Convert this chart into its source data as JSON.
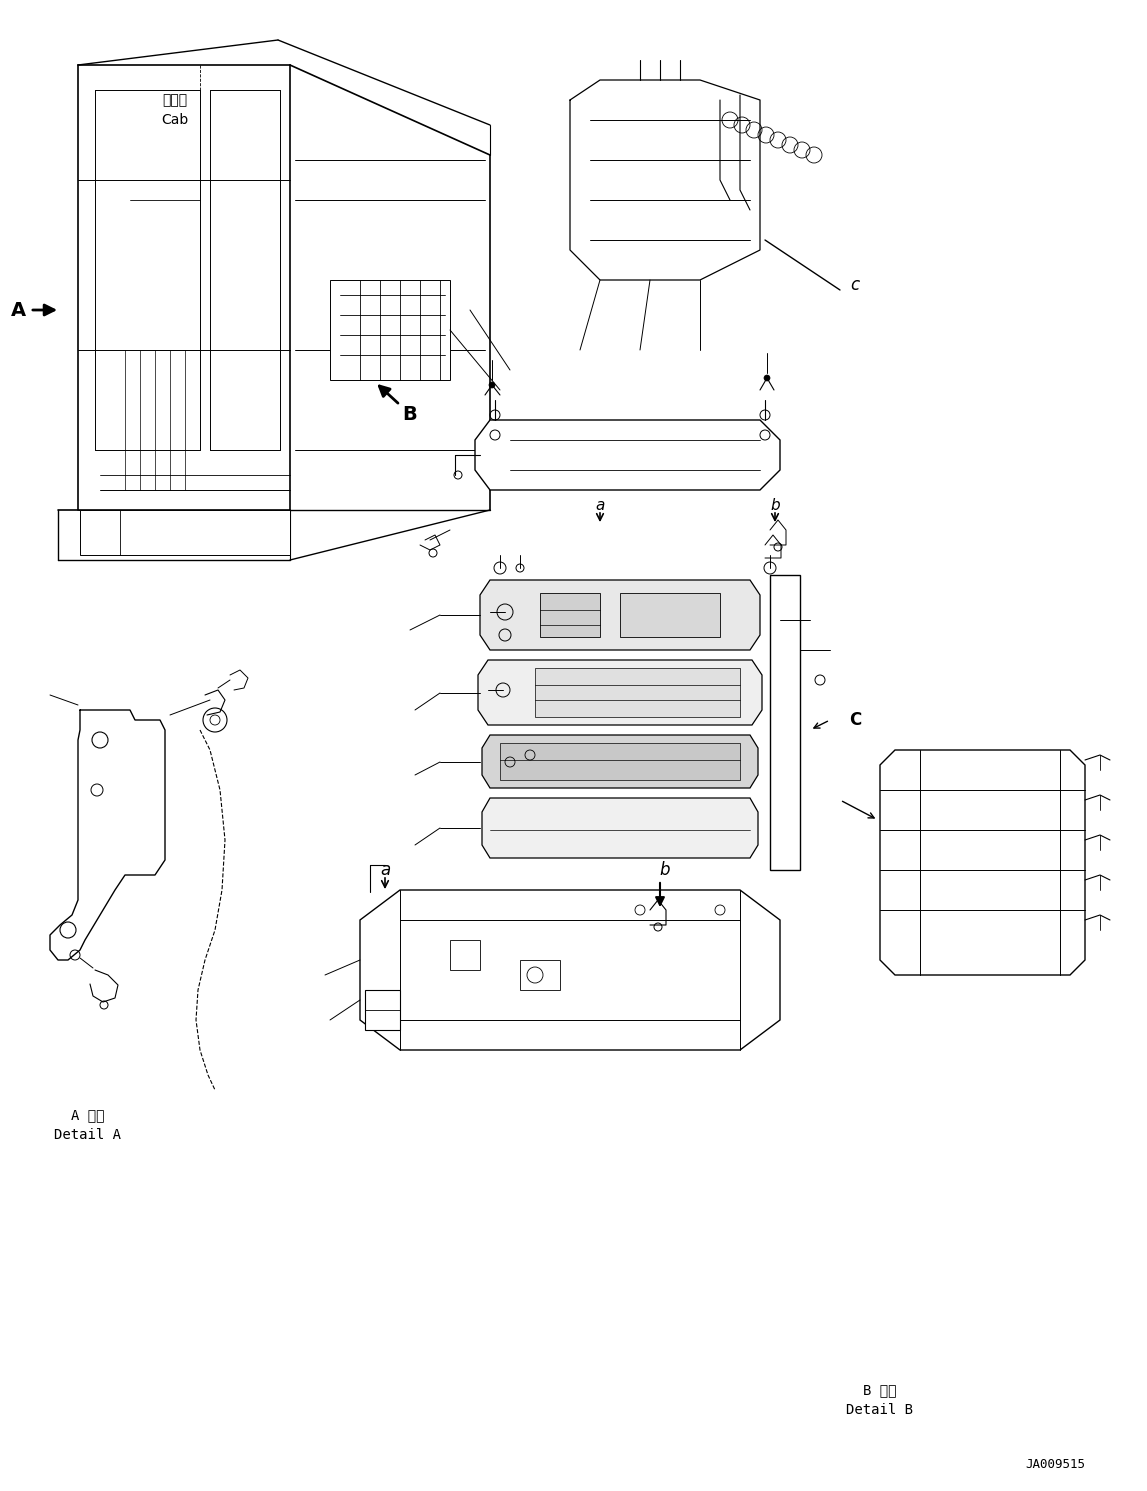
{
  "figure_width": 11.47,
  "figure_height": 14.91,
  "dpi": 100,
  "bg_color": "#ffffff",
  "line_color": "#000000",
  "part_id": "JA009515",
  "cab_label_jp": "キャブ",
  "cab_label_en": "Cab",
  "label_A": "A",
  "label_B": "B",
  "label_c": "c",
  "label_a": "a",
  "label_b": "b",
  "label_C": "C",
  "detail_A_jp": "A 詳細",
  "detail_A_en": "Detail A",
  "detail_B_jp": "B 詳細",
  "detail_B_en": "Detail B"
}
